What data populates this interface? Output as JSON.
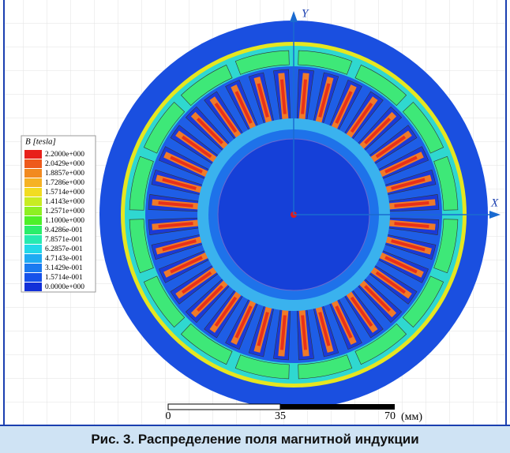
{
  "figure": {
    "axis_labels": {
      "x": "X",
      "y": "Y"
    },
    "legend": {
      "title": "B [tesla]",
      "entries": [
        {
          "label": "2.2000e+000",
          "color": "#e8201a"
        },
        {
          "label": "2.0429e+000",
          "color": "#ee5a1c"
        },
        {
          "label": "1.8857e+000",
          "color": "#f28a20"
        },
        {
          "label": "1.7286e+000",
          "color": "#f6b224"
        },
        {
          "label": "1.5714e+000",
          "color": "#f2dc22"
        },
        {
          "label": "1.4143e+000",
          "color": "#c8ec22"
        },
        {
          "label": "1.2571e+000",
          "color": "#8ef022"
        },
        {
          "label": "1.1000e+000",
          "color": "#4ef028"
        },
        {
          "label": "9.4286e-001",
          "color": "#2aee6a"
        },
        {
          "label": "7.8571e-001",
          "color": "#26eab0"
        },
        {
          "label": "6.2857e-001",
          "color": "#22d8e8"
        },
        {
          "label": "4.7143e-001",
          "color": "#1eaaf2"
        },
        {
          "label": "3.1429e-001",
          "color": "#1a7af0"
        },
        {
          "label": "1.5714e-001",
          "color": "#1652ea"
        },
        {
          "label": "0.0000e+000",
          "color": "#1230d8"
        }
      ]
    },
    "scale_bar": {
      "labels": [
        "0",
        "35",
        "70"
      ],
      "unit": "(мм)"
    },
    "caption": "Рис. 3. Распределение поля магнитной индукции"
  }
}
